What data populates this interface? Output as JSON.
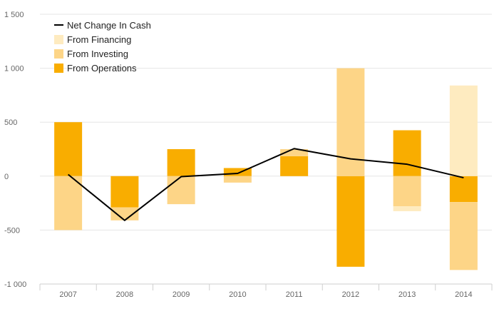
{
  "chart_data": {
    "type": "bar",
    "stacked": true,
    "categories": [
      "2007",
      "2008",
      "2009",
      "2010",
      "2011",
      "2012",
      "2013",
      "2014"
    ],
    "ylim": [
      -1000,
      1500
    ],
    "yticks": [
      1500,
      1000,
      500,
      0,
      -500,
      -1000
    ],
    "ytick_labels": [
      "1 500",
      "1 000",
      "500",
      "0",
      "-500",
      "-1 000"
    ],
    "grid": true,
    "legend_position": "top-left",
    "series": [
      {
        "name": "From Operations",
        "color": "#F9AD00",
        "values": [
          500,
          -290,
          250,
          75,
          185,
          -840,
          425,
          -240
        ]
      },
      {
        "name": "From Investing",
        "color": "#FDD587",
        "values": [
          -500,
          -120,
          -260,
          -60,
          65,
          1000,
          -280,
          -630
        ]
      },
      {
        "name": "From Financing",
        "color": "#FEEBC0",
        "values": [
          0,
          0,
          0,
          0,
          0,
          0,
          -45,
          840
        ]
      }
    ],
    "line": {
      "name": "Net Change In Cash",
      "color": "#000000",
      "values": [
        15,
        -410,
        -5,
        25,
        255,
        160,
        110,
        -15
      ]
    },
    "legend": {
      "items": [
        {
          "label": "Net Change In Cash",
          "kind": "line",
          "color": "#000000"
        },
        {
          "label": "From Financing",
          "kind": "box",
          "color": "#FEEBC0"
        },
        {
          "label": "From Investing",
          "kind": "box",
          "color": "#FDD587"
        },
        {
          "label": "From Operations",
          "kind": "box",
          "color": "#F9AD00"
        }
      ]
    }
  }
}
